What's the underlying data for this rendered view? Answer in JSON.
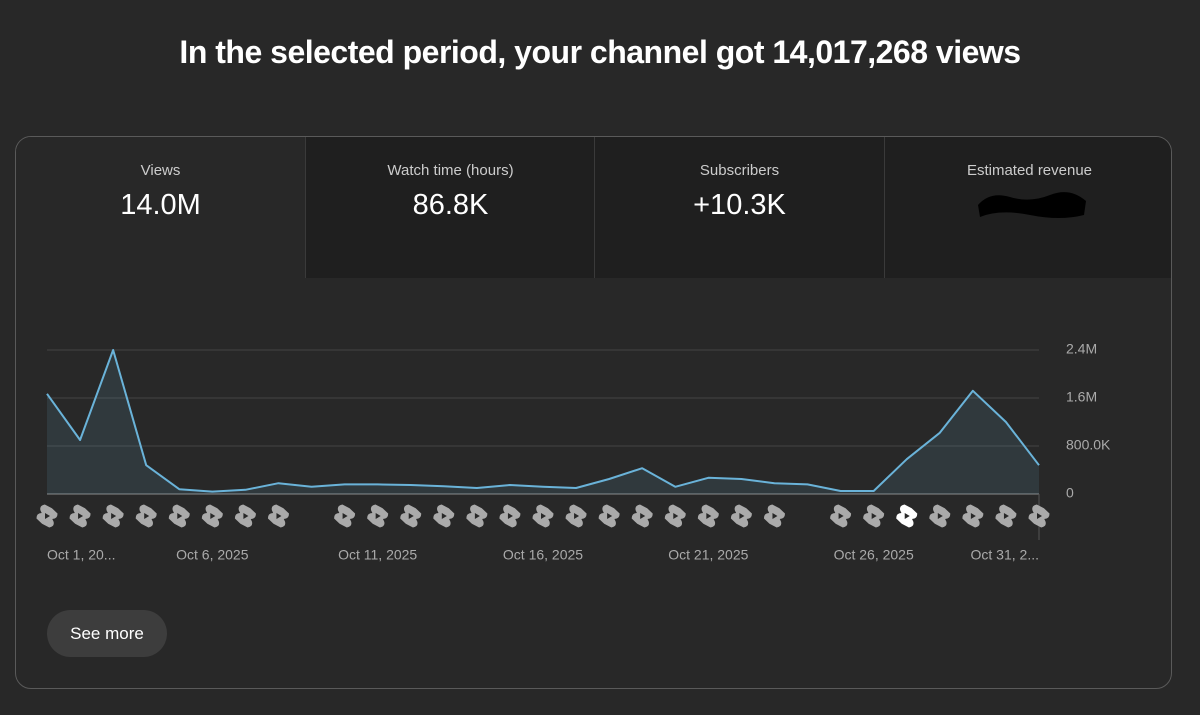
{
  "header": {
    "title": "In the selected period, your channel got 14,017,268 views"
  },
  "metrics": [
    {
      "label": "Views",
      "value": "14.0M"
    },
    {
      "label": "Watch time (hours)",
      "value": "86.8K"
    },
    {
      "label": "Subscribers",
      "value": "+10.3K"
    },
    {
      "label": "Estimated revenue"
    }
  ],
  "button": {
    "label": "See more"
  },
  "chart_data": {
    "type": "line",
    "categories": [
      "Oct 1, 20...",
      null,
      null,
      null,
      null,
      "Oct 6, 2025",
      null,
      null,
      null,
      null,
      "Oct 11, 2025",
      null,
      null,
      null,
      null,
      "Oct 16, 2025",
      null,
      null,
      null,
      null,
      "Oct 21, 2025",
      null,
      null,
      null,
      null,
      "Oct 26, 2025",
      null,
      null,
      null,
      null,
      "Oct 31, 2..."
    ],
    "values": [
      1670000,
      900000,
      2400000,
      480000,
      80000,
      40000,
      70000,
      180000,
      120000,
      160000,
      160000,
      150000,
      130000,
      100000,
      150000,
      120000,
      100000,
      250000,
      430000,
      120000,
      270000,
      250000,
      180000,
      160000,
      50000,
      50000,
      580000,
      1020000,
      1720000,
      1200000,
      480000
    ],
    "color": "#6ab3d9",
    "ylim": [
      0,
      2400000
    ],
    "yticks": [
      0,
      {
        "value": 800000,
        "label": "800.0K"
      },
      {
        "value": 1600000,
        "label": "1.6M"
      },
      {
        "value": 2400000,
        "label": "2.4M"
      }
    ],
    "grid": true
  }
}
